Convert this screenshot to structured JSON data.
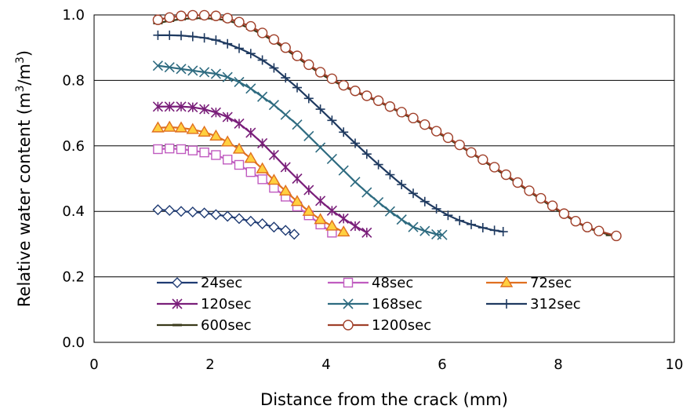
{
  "chart_data": {
    "type": "line",
    "title": "",
    "xlabel": "Distance from the crack (mm)",
    "ylabel": "Relative water content (m",
    "ylabel_sup1": "3",
    "ylabel_mid": "/m",
    "ylabel_sup2": "3",
    "ylabel_end": ")",
    "xlim": [
      0,
      10
    ],
    "ylim": [
      0.0,
      1.0
    ],
    "xticks": [
      "0",
      "2",
      "4",
      "6",
      "8",
      "10"
    ],
    "yticks": [
      "0.0",
      "0.2",
      "0.4",
      "0.6",
      "0.8",
      "1.0"
    ],
    "grid": "horizontal",
    "legend_position": "inside-bottom",
    "series": [
      {
        "name": "24sec",
        "color": "#1f3b73",
        "marker": "diamond",
        "markerFill": "#ffffff",
        "x": [
          1.1,
          1.3,
          1.5,
          1.7,
          1.9,
          2.1,
          2.3,
          2.5,
          2.7,
          2.9,
          3.1,
          3.3,
          3.45
        ],
        "y": [
          0.405,
          0.403,
          0.4,
          0.398,
          0.395,
          0.39,
          0.385,
          0.378,
          0.37,
          0.362,
          0.352,
          0.342,
          0.33
        ]
      },
      {
        "name": "48sec",
        "color": "#c05cc0",
        "marker": "square",
        "markerFill": "#ffffff",
        "x": [
          1.1,
          1.3,
          1.5,
          1.7,
          1.9,
          2.1,
          2.3,
          2.5,
          2.7,
          2.9,
          3.1,
          3.3,
          3.5,
          3.7,
          3.9,
          4.1
        ],
        "y": [
          0.59,
          0.592,
          0.59,
          0.586,
          0.58,
          0.572,
          0.558,
          0.542,
          0.52,
          0.498,
          0.472,
          0.445,
          0.415,
          0.388,
          0.36,
          0.335
        ]
      },
      {
        "name": "72sec",
        "color": "#e07020",
        "marker": "triangle",
        "markerFill": "#ffd040",
        "x": [
          1.1,
          1.3,
          1.5,
          1.7,
          1.9,
          2.1,
          2.3,
          2.5,
          2.7,
          2.9,
          3.1,
          3.3,
          3.5,
          3.7,
          3.9,
          4.1,
          4.3
        ],
        "y": [
          0.655,
          0.657,
          0.655,
          0.65,
          0.642,
          0.63,
          0.612,
          0.59,
          0.562,
          0.53,
          0.495,
          0.462,
          0.43,
          0.4,
          0.375,
          0.355,
          0.337
        ]
      },
      {
        "name": "120sec",
        "color": "#7a1f7a",
        "marker": "star",
        "markerFill": "none",
        "x": [
          1.1,
          1.3,
          1.5,
          1.7,
          1.9,
          2.1,
          2.3,
          2.5,
          2.7,
          2.9,
          3.1,
          3.3,
          3.5,
          3.7,
          3.9,
          4.1,
          4.3,
          4.5,
          4.7
        ],
        "y": [
          0.72,
          0.72,
          0.72,
          0.718,
          0.712,
          0.702,
          0.688,
          0.668,
          0.64,
          0.608,
          0.572,
          0.535,
          0.5,
          0.465,
          0.432,
          0.402,
          0.378,
          0.355,
          0.335
        ]
      },
      {
        "name": "168sec",
        "color": "#2e6b80",
        "marker": "x",
        "markerFill": "none",
        "x": [
          1.1,
          1.3,
          1.5,
          1.7,
          1.9,
          2.1,
          2.3,
          2.5,
          2.7,
          2.9,
          3.1,
          3.3,
          3.5,
          3.7,
          3.9,
          4.1,
          4.3,
          4.5,
          4.7,
          4.9,
          5.1,
          5.3,
          5.5,
          5.7,
          5.9,
          6.0
        ],
        "y": [
          0.845,
          0.84,
          0.835,
          0.83,
          0.825,
          0.82,
          0.81,
          0.795,
          0.775,
          0.75,
          0.725,
          0.695,
          0.665,
          0.63,
          0.595,
          0.56,
          0.525,
          0.49,
          0.458,
          0.428,
          0.4,
          0.375,
          0.352,
          0.34,
          0.33,
          0.328
        ]
      },
      {
        "name": "312sec",
        "color": "#1f3a60",
        "marker": "plus",
        "markerFill": "none",
        "x": [
          1.1,
          1.3,
          1.5,
          1.7,
          1.9,
          2.1,
          2.3,
          2.5,
          2.7,
          2.9,
          3.1,
          3.3,
          3.5,
          3.7,
          3.9,
          4.1,
          4.3,
          4.5,
          4.7,
          4.9,
          5.1,
          5.3,
          5.5,
          5.7,
          5.9,
          6.1,
          6.3,
          6.5,
          6.7,
          6.9,
          7.05
        ],
        "y": [
          0.938,
          0.938,
          0.937,
          0.934,
          0.93,
          0.923,
          0.912,
          0.898,
          0.882,
          0.862,
          0.838,
          0.808,
          0.778,
          0.745,
          0.712,
          0.678,
          0.642,
          0.608,
          0.575,
          0.543,
          0.512,
          0.482,
          0.455,
          0.43,
          0.408,
          0.388,
          0.372,
          0.36,
          0.35,
          0.342,
          0.338
        ]
      },
      {
        "name": "600sec",
        "color": "#3a3a1a",
        "marker": "dash",
        "markerFill": "none",
        "x": [
          1.1,
          1.3,
          1.5,
          1.7,
          1.9,
          2.1,
          2.3,
          2.5,
          2.7,
          2.9,
          3.1,
          3.3,
          3.5,
          3.7,
          3.9,
          4.1,
          4.3,
          4.5,
          4.7,
          4.9,
          5.1,
          5.3,
          5.5,
          5.7,
          5.9,
          6.1,
          6.3,
          6.5,
          6.7,
          6.9,
          7.1,
          7.3,
          7.5,
          7.7,
          7.9,
          8.1,
          8.3,
          8.5,
          8.7,
          8.9,
          9.0
        ],
        "y": [
          0.975,
          0.982,
          0.987,
          0.99,
          0.99,
          0.988,
          0.983,
          0.972,
          0.958,
          0.94,
          0.92,
          0.895,
          0.87,
          0.845,
          0.82,
          0.8,
          0.782,
          0.765,
          0.75,
          0.735,
          0.718,
          0.7,
          0.682,
          0.663,
          0.642,
          0.622,
          0.6,
          0.578,
          0.555,
          0.532,
          0.508,
          0.485,
          0.46,
          0.437,
          0.413,
          0.39,
          0.368,
          0.35,
          0.337,
          0.328,
          0.325
        ]
      },
      {
        "name": "1200sec",
        "color": "#a0402a",
        "marker": "circle",
        "markerFill": "#ffffff",
        "x": [
          1.1,
          1.3,
          1.5,
          1.7,
          1.9,
          2.1,
          2.3,
          2.5,
          2.7,
          2.9,
          3.1,
          3.3,
          3.5,
          3.7,
          3.9,
          4.1,
          4.3,
          4.5,
          4.7,
          4.9,
          5.1,
          5.3,
          5.5,
          5.7,
          5.9,
          6.1,
          6.3,
          6.5,
          6.7,
          6.9,
          7.1,
          7.3,
          7.5,
          7.7,
          7.9,
          8.1,
          8.3,
          8.5,
          8.7,
          9.0
        ],
        "y": [
          0.985,
          0.992,
          0.997,
          0.999,
          0.999,
          0.997,
          0.99,
          0.978,
          0.965,
          0.945,
          0.925,
          0.9,
          0.875,
          0.848,
          0.825,
          0.805,
          0.785,
          0.768,
          0.753,
          0.738,
          0.72,
          0.703,
          0.685,
          0.665,
          0.645,
          0.625,
          0.603,
          0.58,
          0.558,
          0.535,
          0.512,
          0.488,
          0.463,
          0.44,
          0.417,
          0.393,
          0.37,
          0.352,
          0.34,
          0.325
        ]
      }
    ]
  }
}
